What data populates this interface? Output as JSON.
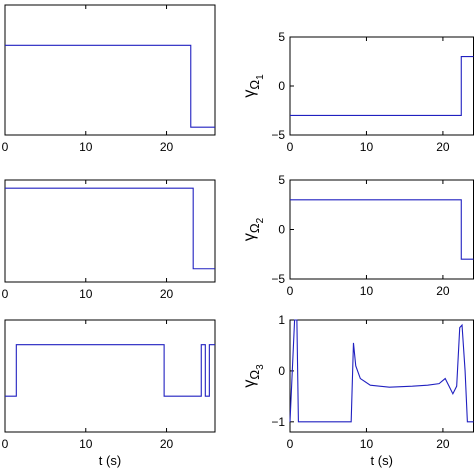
{
  "chart_data": [
    {
      "type": "line",
      "x": [
        0,
        23.0,
        23.0,
        26
      ],
      "values": [
        0.69,
        0.69,
        0.06,
        0.06
      ],
      "color": "#2020c0",
      "xlim": [
        0,
        26
      ],
      "ylim": [
        0,
        1
      ],
      "xticks": [
        0,
        10,
        20
      ]
    },
    {
      "type": "line",
      "x": [
        0,
        22.4,
        22.4,
        24
      ],
      "values": [
        -3,
        -3,
        3,
        3
      ],
      "color": "#2020c0",
      "xlim": [
        0,
        24
      ],
      "ylim": [
        -5,
        5
      ],
      "xticks": [
        0,
        10,
        20
      ],
      "yticks": [
        {
          "value": -5,
          "label": "−5"
        },
        0,
        5
      ],
      "ylabel": [
        "γ",
        "Ω",
        "1"
      ]
    },
    {
      "type": "line",
      "x": [
        0,
        23.3,
        23.3,
        26
      ],
      "values": [
        0.92,
        0.92,
        0.13,
        0.13
      ],
      "color": "#2020c0",
      "xlim": [
        0,
        26
      ],
      "ylim": [
        0,
        1
      ],
      "xticks": [
        0,
        10,
        20
      ]
    },
    {
      "type": "line",
      "x": [
        0,
        22.4,
        22.4,
        24
      ],
      "values": [
        3,
        3,
        -3,
        -3
      ],
      "color": "#2020c0",
      "xlim": [
        0,
        24
      ],
      "ylim": [
        -5,
        5
      ],
      "xticks": [
        0,
        10,
        20
      ],
      "yticks": [
        {
          "value": -5,
          "label": "−5"
        },
        0,
        5
      ],
      "ylabel": [
        "γ",
        "Ω",
        "2"
      ]
    },
    {
      "type": "line",
      "x": [
        0,
        1.4,
        1.4,
        19.7,
        19.7,
        24.3,
        24.3,
        24.8,
        24.8,
        25.3,
        25.3,
        26
      ],
      "values": [
        0.32,
        0.32,
        0.78,
        0.78,
        0.32,
        0.32,
        0.78,
        0.78,
        0.32,
        0.32,
        0.78,
        0.78
      ],
      "color": "#2020c0",
      "xlim": [
        0,
        26
      ],
      "ylim": [
        0,
        1
      ],
      "xticks": [
        0,
        10,
        20
      ],
      "xlabel": "t (s)"
    },
    {
      "type": "line",
      "x": [
        0,
        0.6,
        0.9,
        1.1,
        8.0,
        8.3,
        8.6,
        9.2,
        10.5,
        13,
        16,
        18,
        19.5,
        20.3,
        20.8,
        21.3,
        21.8,
        22.2,
        22.5,
        22.9,
        23.2,
        24
      ],
      "values": [
        -1,
        1,
        1,
        -1,
        -1,
        0.55,
        0.1,
        -0.15,
        -0.28,
        -0.32,
        -0.3,
        -0.28,
        -0.25,
        -0.15,
        -0.3,
        -0.45,
        -0.3,
        0.85,
        0.9,
        0,
        -1,
        -1
      ],
      "color": "#2020c0",
      "xlim": [
        0,
        24
      ],
      "ylim": [
        -1.2,
        1
      ],
      "xticks": [
        0,
        10,
        20
      ],
      "yticks": [
        {
          "value": -1,
          "label": "−1"
        },
        0,
        1
      ],
      "ylabel": [
        "γ",
        "Ω",
        "3"
      ],
      "xlabel": "t (s)"
    }
  ]
}
